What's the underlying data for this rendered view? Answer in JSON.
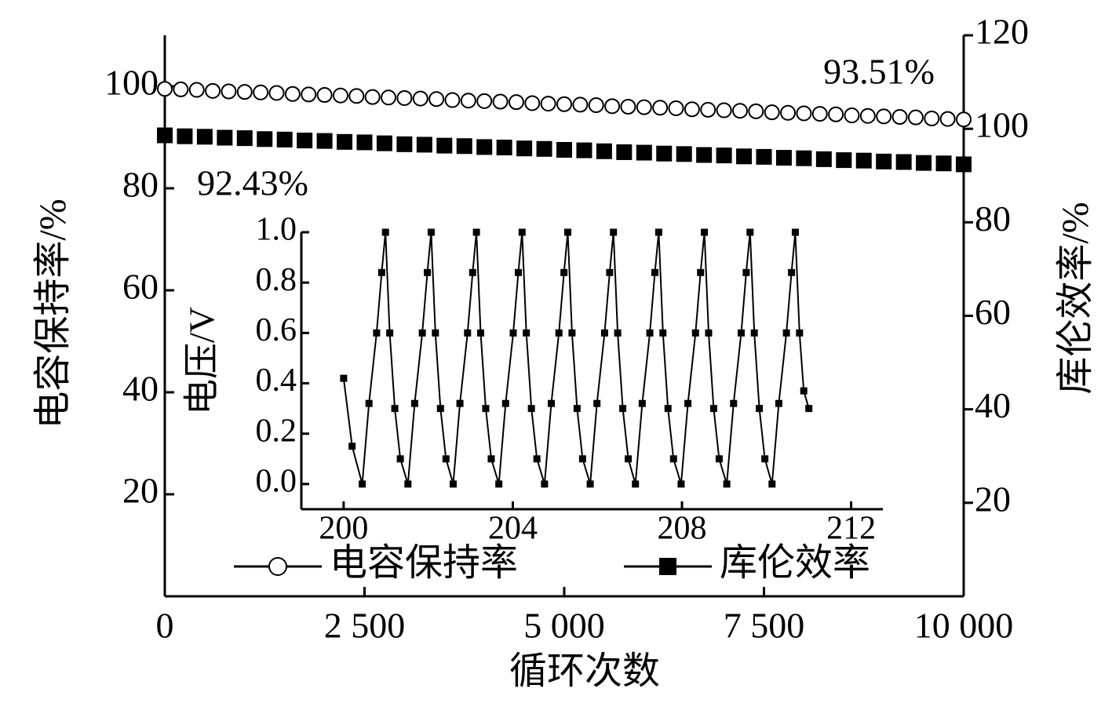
{
  "chart_data": [
    {
      "type": "scatter",
      "x_label": "循环次数",
      "y_label": "电容保持率/%",
      "y2_label": "库伦效率/%",
      "xlim": [
        0,
        10000
      ],
      "xticks": [
        0,
        {
          "value": 2500,
          "label": "2 500"
        },
        {
          "value": 5000,
          "label": "5 000"
        },
        {
          "value": 7500,
          "label": "7 500"
        },
        {
          "value": 10000,
          "label": "10 000"
        }
      ],
      "ylim": [
        0,
        110
      ],
      "yticks": [
        20,
        40,
        60,
        80,
        100
      ],
      "y2lim": [
        0,
        120
      ],
      "y2ticks": [
        20,
        40,
        60,
        80,
        100,
        120
      ],
      "annotations": [
        "93.51%",
        "92.43%"
      ],
      "series": [
        {
          "name": "电容保持率",
          "color": "#000000",
          "marker": "open-circle",
          "x": [
            0,
            200,
            400,
            600,
            800,
            1000,
            1200,
            1400,
            1600,
            1800,
            2000,
            2200,
            2400,
            2600,
            2800,
            3000,
            3200,
            3400,
            3600,
            3800,
            4000,
            4200,
            4400,
            4600,
            4800,
            5000,
            5200,
            5400,
            5600,
            5800,
            6000,
            6200,
            6400,
            6600,
            6800,
            7000,
            7200,
            7400,
            7600,
            7800,
            8000,
            8200,
            8400,
            8600,
            8800,
            9000,
            9200,
            9400,
            9600,
            9800,
            10000
          ],
          "values": [
            99.5,
            99.4,
            99.3,
            99.1,
            99.0,
            98.9,
            98.8,
            98.7,
            98.5,
            98.4,
            98.3,
            98.2,
            98.1,
            97.9,
            97.8,
            97.7,
            97.6,
            97.5,
            97.3,
            97.2,
            97.1,
            97.0,
            96.9,
            96.7,
            96.6,
            96.5,
            96.4,
            96.3,
            96.1,
            96.0,
            95.9,
            95.8,
            95.7,
            95.5,
            95.4,
            95.3,
            95.2,
            95.1,
            94.9,
            94.8,
            94.7,
            94.6,
            94.5,
            94.3,
            94.2,
            94.1,
            94.0,
            93.9,
            93.7,
            93.6,
            93.5
          ]
        },
        {
          "name": "库伦效率",
          "color": "#000000",
          "marker": "filled-square",
          "axis": "y2",
          "x": [
            0,
            250,
            500,
            750,
            1000,
            1250,
            1500,
            1750,
            2000,
            2250,
            2500,
            2750,
            3000,
            3250,
            3500,
            3750,
            4000,
            4250,
            4500,
            4750,
            5000,
            5250,
            5500,
            5750,
            6000,
            6250,
            6500,
            6750,
            7000,
            7250,
            7500,
            7750,
            8000,
            8250,
            8500,
            8750,
            9000,
            9250,
            9500,
            9750,
            10000
          ],
          "values": [
            98.6,
            98.4,
            98.3,
            98.1,
            98.0,
            97.8,
            97.7,
            97.5,
            97.4,
            97.2,
            97.1,
            96.9,
            96.7,
            96.6,
            96.4,
            96.3,
            96.1,
            96.0,
            95.8,
            95.7,
            95.5,
            95.4,
            95.2,
            95.0,
            94.9,
            94.7,
            94.6,
            94.4,
            94.3,
            94.1,
            94.0,
            93.8,
            93.7,
            93.5,
            93.3,
            93.2,
            93.0,
            92.9,
            92.7,
            92.6,
            92.4
          ]
        }
      ]
    },
    {
      "type": "line",
      "y_label": "电压/V",
      "color": "#000000",
      "xlim": [
        199,
        212.75
      ],
      "xticks": [
        200,
        204,
        208,
        212
      ],
      "ylim": [
        -0.1,
        1.0
      ],
      "yticks": [
        {
          "value": 0,
          "label": "0.0"
        },
        0.2,
        0.4,
        0.6,
        0.8,
        {
          "value": 1,
          "label": "1.0"
        }
      ],
      "x": [
        200.0,
        200.2,
        200.44,
        200.6,
        200.78,
        200.9,
        200.99,
        201.09,
        201.21,
        201.34,
        201.52,
        201.68,
        201.86,
        201.98,
        202.07,
        202.17,
        202.29,
        202.42,
        202.59,
        202.75,
        202.93,
        203.05,
        203.14,
        203.24,
        203.36,
        203.49,
        203.67,
        203.83,
        204.01,
        204.13,
        204.22,
        204.32,
        204.44,
        204.57,
        204.75,
        204.91,
        205.09,
        205.21,
        205.3,
        205.4,
        205.52,
        205.65,
        205.83,
        205.99,
        206.17,
        206.29,
        206.38,
        206.48,
        206.6,
        206.73,
        206.9,
        207.06,
        207.24,
        207.36,
        207.45,
        207.55,
        207.67,
        207.8,
        207.98,
        208.14,
        208.32,
        208.44,
        208.53,
        208.63,
        208.75,
        208.88,
        209.06,
        209.22,
        209.4,
        209.52,
        209.61,
        209.71,
        209.83,
        209.96,
        210.13,
        210.29,
        210.47,
        210.59,
        210.68,
        210.78,
        210.88,
        211.0
      ],
      "values": [
        0.42,
        0.15,
        0.0,
        0.32,
        0.6,
        0.84,
        1.0,
        0.6,
        0.3,
        0.1,
        0.0,
        0.32,
        0.6,
        0.84,
        1.0,
        0.6,
        0.3,
        0.1,
        0.0,
        0.32,
        0.6,
        0.84,
        1.0,
        0.6,
        0.3,
        0.1,
        0.0,
        0.32,
        0.6,
        0.84,
        1.0,
        0.6,
        0.3,
        0.1,
        0.0,
        0.32,
        0.6,
        0.84,
        1.0,
        0.6,
        0.3,
        0.1,
        0.0,
        0.32,
        0.6,
        0.84,
        1.0,
        0.6,
        0.3,
        0.1,
        0.0,
        0.32,
        0.6,
        0.84,
        1.0,
        0.6,
        0.3,
        0.1,
        0.0,
        0.32,
        0.6,
        0.84,
        1.0,
        0.6,
        0.3,
        0.1,
        0.0,
        0.32,
        0.6,
        0.84,
        1.0,
        0.6,
        0.3,
        0.1,
        0.0,
        0.32,
        0.6,
        0.84,
        1.0,
        0.6,
        0.37,
        0.3
      ]
    }
  ]
}
